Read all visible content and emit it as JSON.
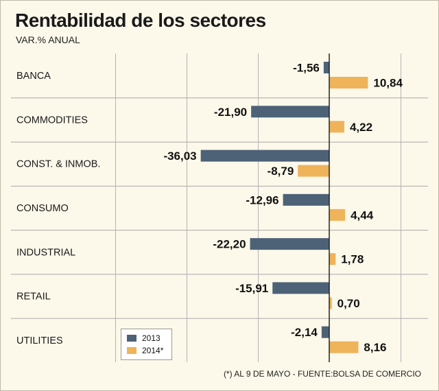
{
  "chart_data": {
    "type": "bar",
    "orientation": "horizontal",
    "title": "Rentabilidad de los sectores",
    "subtitle": "VAR.% ANUAL",
    "footnote": "(*) AL 9 DE MAYO - FUENTE:BOLSA DE COMERCIO",
    "categories": [
      "BANCA",
      "COMMODITIES",
      "CONST. & INMOB.",
      "CONSUMO",
      "INDUSTRIAL",
      "RETAIL",
      "UTILITIES"
    ],
    "series": [
      {
        "name": "2013",
        "color": "#4d6277",
        "values": [
          -1.56,
          -21.9,
          -36.03,
          -12.96,
          -22.2,
          -15.91,
          -2.14
        ],
        "labels": [
          "-1,56",
          "-21,90",
          "-36,03",
          "-12,96",
          "-22,20",
          "-15,91",
          "-2,14"
        ]
      },
      {
        "name": "2014*",
        "color": "#efb35a",
        "values": [
          10.84,
          4.22,
          -8.79,
          4.44,
          1.78,
          0.7,
          8.16
        ],
        "labels": [
          "10,84",
          "4,22",
          "-8,79",
          "4,44",
          "1,78",
          "0,70",
          "8,16"
        ]
      }
    ],
    "xlim": [
      -60,
      20
    ],
    "gridlines": [
      -60,
      -40,
      -20,
      0,
      20
    ],
    "legend_position": "bottom-left"
  }
}
